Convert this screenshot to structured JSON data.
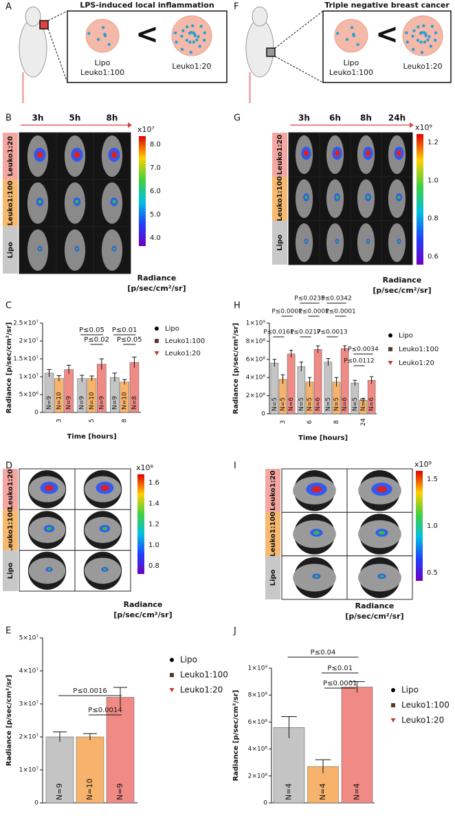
{
  "panels": {
    "A": {
      "letter": "A",
      "title": "LPS-induced local inflammation",
      "left_label": [
        "Lipo",
        "Leuko1:100"
      ],
      "symbol": "<",
      "right_label": "Leuko1:20"
    },
    "B": {
      "letter": "B",
      "times": [
        "3h",
        "5h",
        "8h"
      ],
      "rows": [
        "Leuko1:20",
        "Leuko1:100",
        "Lipo"
      ],
      "colorbar_exponent": "x10⁷",
      "colorbar_ticks": [
        "8.0",
        "7.0",
        "6.0",
        "5.0",
        "4.0"
      ],
      "colorbar_title": [
        "Radiance",
        "[p/sec/cm²/sr]"
      ]
    },
    "C": {
      "letter": "C"
    },
    "D": {
      "letter": "D",
      "rows": [
        "Leuko1:20",
        "Leuko1:100",
        "Lipo"
      ],
      "colorbar_exponent": "x10⁸",
      "colorbar_ticks": [
        "1.6",
        "1.4",
        "1.2",
        "1.0",
        "0.8"
      ],
      "colorbar_title": [
        "Radiance",
        "[p/sec/cm²/sr]"
      ]
    },
    "E": {
      "letter": "E"
    },
    "F": {
      "letter": "F",
      "title": "Triple negative breast cancer",
      "left_label": [
        "Lipo",
        "Leuko1:100"
      ],
      "symbol": "<",
      "right_label": "Leuko1:20"
    },
    "G": {
      "letter": "G",
      "times": [
        "3h",
        "6h",
        "8h",
        "24h"
      ],
      "rows": [
        "Leuko1:20",
        "Leuko1:100",
        "Lipo"
      ],
      "colorbar_exponent": "x10⁹",
      "colorbar_ticks": [
        "1.2",
        "1.0",
        "0.8",
        "0.6"
      ],
      "colorbar_title": [
        "Radiance",
        "[p/sec/cm²/sr]"
      ]
    },
    "H": {
      "letter": "H"
    },
    "I": {
      "letter": "I",
      "rows": [
        "Leuko1:20",
        "Leuko1:100",
        "Lipo"
      ],
      "colorbar_exponent": "x10⁹",
      "colorbar_ticks": [
        "1.5",
        "1.0",
        "0.5"
      ],
      "colorbar_title": [
        "Radiance",
        "[p/sec/cm²/sr]"
      ]
    },
    "J": {
      "letter": "J"
    }
  },
  "chart_data": [
    {
      "type": "bar",
      "y_label": "Radiance [p/sec/cm²/sr]",
      "x_label": "Time [hours]",
      "categories": [
        "3",
        "5",
        "8"
      ],
      "series": [
        {
          "name": "Lipo",
          "color": "#c4c4c4",
          "marker_color": "#000000",
          "values": [
            11000000,
            9500000,
            9800000
          ],
          "errors": [
            1000000,
            900000,
            1200000
          ],
          "bar_labels": [
            "N=9",
            "N=9",
            "N=9"
          ]
        },
        {
          "name": "Leuko1:100",
          "color": "#f7b36b",
          "marker_color": "#5a3a28",
          "values": [
            9500000,
            9500000,
            8500000
          ],
          "errors": [
            800000,
            700000,
            700000
          ],
          "bar_labels": [
            "N=10",
            "N=10",
            "N=10"
          ]
        },
        {
          "name": "Leuko1:20",
          "color": "#f08a84",
          "marker_color": "#c0392b",
          "values": [
            12000000,
            13500000,
            14000000
          ],
          "errors": [
            1200000,
            1500000,
            1500000
          ],
          "bar_labels": [
            "N=9",
            "N=9",
            "N=8"
          ]
        }
      ],
      "ylim": [
        0,
        25000000
      ],
      "yticks": [
        0,
        {
          "value": 5000000,
          "label": "5×10⁶"
        },
        {
          "value": 10000000,
          "label": "1×10⁷"
        },
        {
          "value": 15000000,
          "label": "1.5×10⁷"
        },
        {
          "value": 20000000,
          "label": "2×10⁷"
        },
        {
          "value": 25000000,
          "label": "2.5×10⁷"
        }
      ],
      "annotations": [
        "P≤0.05",
        "P≤0.02",
        "P≤0.01",
        "P≤0.05"
      ]
    },
    {
      "type": "bar",
      "y_label": "Radiance [p/sec/cm²/sr]",
      "categories": [
        null
      ],
      "series": [
        {
          "name": "Lipo",
          "color": "#c4c4c4",
          "marker_color": "#000000",
          "values": [
            20000000
          ],
          "errors": [
            1500000
          ],
          "bar_labels": [
            "N=9"
          ]
        },
        {
          "name": "Leuko1:100",
          "color": "#f7b36b",
          "marker_color": "#5a3a28",
          "values": [
            20000000
          ],
          "errors": [
            1000000
          ],
          "bar_labels": [
            "N=10"
          ]
        },
        {
          "name": "Leuko1:20",
          "color": "#f08a84",
          "marker_color": "#c0392b",
          "values": [
            32000000
          ],
          "errors": [
            3000000
          ],
          "bar_labels": [
            "N=9"
          ]
        }
      ],
      "ylim": [
        0,
        50000000
      ],
      "yticks": [
        0,
        {
          "value": 10000000,
          "label": "1×10⁷"
        },
        {
          "value": 20000000,
          "label": "2×10⁷"
        },
        {
          "value": 30000000,
          "label": "3×10⁷"
        },
        {
          "value": 40000000,
          "label": "4×10⁷"
        },
        {
          "value": 50000000,
          "label": "5×10⁷"
        }
      ],
      "annotations": [
        "P≤0.0016",
        "P≤0.0014"
      ]
    },
    {
      "type": "bar",
      "y_label": "Radiance [p/sec/cm²/sr]",
      "x_label": "Time [hours]",
      "categories": [
        "3",
        "6",
        "8",
        "24"
      ],
      "series": [
        {
          "name": "Lipo",
          "color": "#c4c4c4",
          "marker_color": "#000000",
          "values": [
            560000000,
            520000000,
            570000000,
            340000000
          ],
          "errors": [
            40000000,
            50000000,
            40000000,
            30000000
          ],
          "bar_labels": [
            "N=5",
            "N=5",
            "N=5",
            "N=5"
          ]
        },
        {
          "name": "Leuko1:100",
          "color": "#f7b36b",
          "marker_color": "#5a3a28",
          "values": [
            380000000,
            350000000,
            350000000,
            150000000
          ],
          "errors": [
            50000000,
            50000000,
            50000000,
            20000000
          ],
          "bar_labels": [
            "N=5",
            "N=5",
            "N=5",
            "N=5"
          ]
        },
        {
          "name": "Leuko1:20",
          "color": "#f08a84",
          "marker_color": "#c0392b",
          "values": [
            660000000,
            710000000,
            720000000,
            370000000
          ],
          "errors": [
            40000000,
            40000000,
            30000000,
            40000000
          ],
          "bar_labels": [
            "N=6",
            "N=6",
            "N=6",
            "N=6"
          ]
        }
      ],
      "ylim": [
        0,
        1000000000
      ],
      "yticks": [
        0,
        {
          "value": 200000000,
          "label": "2×10⁸"
        },
        {
          "value": 400000000,
          "label": "4×10⁸"
        },
        {
          "value": 600000000,
          "label": "6×10⁸"
        },
        {
          "value": 800000000,
          "label": "8×10⁸"
        },
        {
          "value": 1000000000,
          "label": "1×10⁹"
        }
      ],
      "annotations": [
        "P≤0.0161",
        "P≤0.0001",
        "P≤0.0217",
        "P≤0.0235",
        "P≤0.0001",
        "P≤0.0013",
        "P≤0.0342",
        "P≤0.0001",
        "P≤0.0112",
        "P≤0.0034"
      ]
    },
    {
      "type": "bar",
      "y_label": "Radiance [p/sec/cm²/sr]",
      "categories": [
        null
      ],
      "series": [
        {
          "name": "Lipo",
          "color": "#c4c4c4",
          "marker_color": "#000000",
          "values": [
            560000000
          ],
          "errors": [
            80000000
          ],
          "bar_labels": [
            "N=4"
          ]
        },
        {
          "name": "Leuko1:100",
          "color": "#f7b36b",
          "marker_color": "#5a3a28",
          "values": [
            270000000
          ],
          "errors": [
            50000000
          ],
          "bar_labels": [
            "N=4"
          ]
        },
        {
          "name": "Leuko1:20",
          "color": "#f08a84",
          "marker_color": "#c0392b",
          "values": [
            860000000
          ],
          "errors": [
            40000000
          ],
          "bar_labels": [
            "N=4"
          ]
        }
      ],
      "ylim": [
        0,
        1000000000
      ],
      "yticks": [
        0,
        {
          "value": 200000000,
          "label": "2×10⁸"
        },
        {
          "value": 400000000,
          "label": "4×10⁸"
        },
        {
          "value": 600000000,
          "label": "6×10⁸"
        },
        {
          "value": 800000000,
          "label": "8×10⁸"
        },
        {
          "value": 1000000000,
          "label": "1×10⁹"
        }
      ],
      "annotations": [
        "P≤0.04",
        "P≤0.01",
        "P≤0.0001"
      ]
    }
  ]
}
